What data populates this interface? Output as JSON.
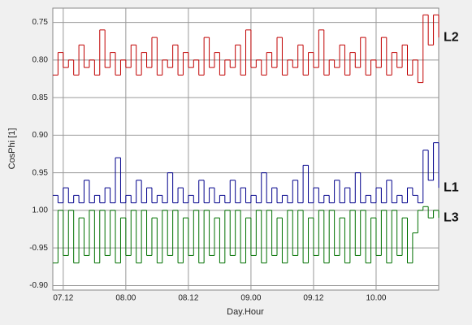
{
  "chart_data": {
    "type": "step",
    "y_label": "CosPhi [1]",
    "x_label": "Day.Hour",
    "xlim": [
      10,
      84
    ],
    "xticks": [
      {
        "value": 12,
        "label": "07.12"
      },
      {
        "value": 24,
        "label": "08.00"
      },
      {
        "value": 36,
        "label": "08.12"
      },
      {
        "value": 48,
        "label": "09.00"
      },
      {
        "value": 60,
        "label": "09.12"
      },
      {
        "value": 72,
        "label": "10.00"
      }
    ],
    "ylim": [
      0.731,
      1.106
    ],
    "y_reversed": true,
    "yticks": [
      0.75,
      {
        "value": 0.8,
        "label": "0.80"
      },
      0.85,
      {
        "value": 0.9,
        "label": "0.90"
      },
      0.95,
      {
        "value": 1.0,
        "label": "1.00"
      },
      {
        "value": 1.05,
        "label": "-0.95"
      },
      {
        "value": 1.1,
        "label": "-0.90"
      }
    ],
    "grid": true,
    "x": [
      10,
      11,
      12,
      13,
      14,
      15,
      16,
      17,
      18,
      19,
      20,
      21,
      22,
      23,
      24,
      25,
      26,
      27,
      28,
      29,
      30,
      31,
      32,
      33,
      34,
      35,
      36,
      37,
      38,
      39,
      40,
      41,
      42,
      43,
      44,
      45,
      46,
      47,
      48,
      49,
      50,
      51,
      52,
      53,
      54,
      55,
      56,
      57,
      58,
      59,
      60,
      61,
      62,
      63,
      64,
      65,
      66,
      67,
      68,
      69,
      70,
      71,
      72,
      73,
      74,
      75,
      76,
      77,
      78,
      79,
      80,
      81,
      82,
      83,
      84
    ],
    "series": [
      {
        "name": "L2",
        "color": "#c00000",
        "values": [
          0.82,
          0.79,
          0.81,
          0.8,
          0.82,
          0.78,
          0.81,
          0.8,
          0.82,
          0.76,
          0.81,
          0.79,
          0.82,
          0.8,
          0.81,
          0.78,
          0.82,
          0.79,
          0.81,
          0.77,
          0.82,
          0.8,
          0.81,
          0.78,
          0.82,
          0.79,
          0.81,
          0.8,
          0.82,
          0.77,
          0.81,
          0.79,
          0.82,
          0.8,
          0.81,
          0.78,
          0.82,
          0.76,
          0.81,
          0.8,
          0.82,
          0.79,
          0.81,
          0.77,
          0.82,
          0.8,
          0.81,
          0.78,
          0.82,
          0.79,
          0.81,
          0.76,
          0.82,
          0.8,
          0.81,
          0.78,
          0.82,
          0.79,
          0.81,
          0.77,
          0.82,
          0.8,
          0.81,
          0.77,
          0.82,
          0.79,
          0.81,
          0.78,
          0.82,
          0.8,
          0.83,
          0.74,
          0.78,
          0.74,
          0.77
        ]
      },
      {
        "name": "L1",
        "color": "#00008b",
        "values": [
          0.98,
          0.99,
          0.97,
          0.99,
          0.98,
          0.99,
          0.96,
          0.99,
          0.98,
          0.99,
          0.97,
          0.99,
          0.93,
          0.99,
          0.98,
          0.99,
          0.96,
          0.99,
          0.97,
          0.99,
          0.98,
          0.99,
          0.95,
          0.99,
          0.97,
          0.99,
          0.98,
          0.99,
          0.96,
          0.99,
          0.97,
          0.99,
          0.98,
          0.99,
          0.96,
          0.99,
          0.97,
          0.99,
          0.98,
          0.99,
          0.95,
          0.99,
          0.97,
          0.99,
          0.98,
          0.99,
          0.96,
          0.99,
          0.94,
          0.99,
          0.97,
          0.99,
          0.98,
          0.99,
          0.96,
          0.99,
          0.97,
          0.99,
          0.95,
          0.99,
          0.98,
          0.99,
          0.97,
          0.99,
          0.96,
          0.99,
          0.98,
          0.99,
          0.97,
          0.98,
          0.99,
          0.92,
          0.96,
          0.91,
          0.97
        ]
      },
      {
        "name": "L3",
        "color": "#007000",
        "values": [
          1.07,
          1.0,
          1.06,
          1.0,
          1.07,
          1.01,
          1.06,
          1.0,
          1.07,
          1.0,
          1.06,
          1.0,
          1.07,
          1.01,
          1.06,
          1.0,
          1.07,
          1.0,
          1.06,
          1.01,
          1.07,
          1.0,
          1.06,
          1.0,
          1.07,
          1.01,
          1.06,
          1.0,
          1.07,
          1.0,
          1.06,
          1.01,
          1.07,
          1.0,
          1.06,
          1.0,
          1.07,
          1.01,
          1.06,
          1.0,
          1.07,
          1.0,
          1.06,
          1.01,
          1.07,
          1.0,
          1.06,
          1.0,
          1.07,
          1.01,
          1.06,
          1.0,
          1.07,
          1.0,
          1.06,
          1.01,
          1.07,
          1.0,
          1.06,
          1.0,
          1.07,
          1.01,
          1.06,
          1.0,
          1.07,
          1.0,
          1.06,
          1.01,
          1.07,
          1.03,
          1.0,
          0.995,
          1.01,
          1.0,
          1.01
        ]
      }
    ]
  }
}
